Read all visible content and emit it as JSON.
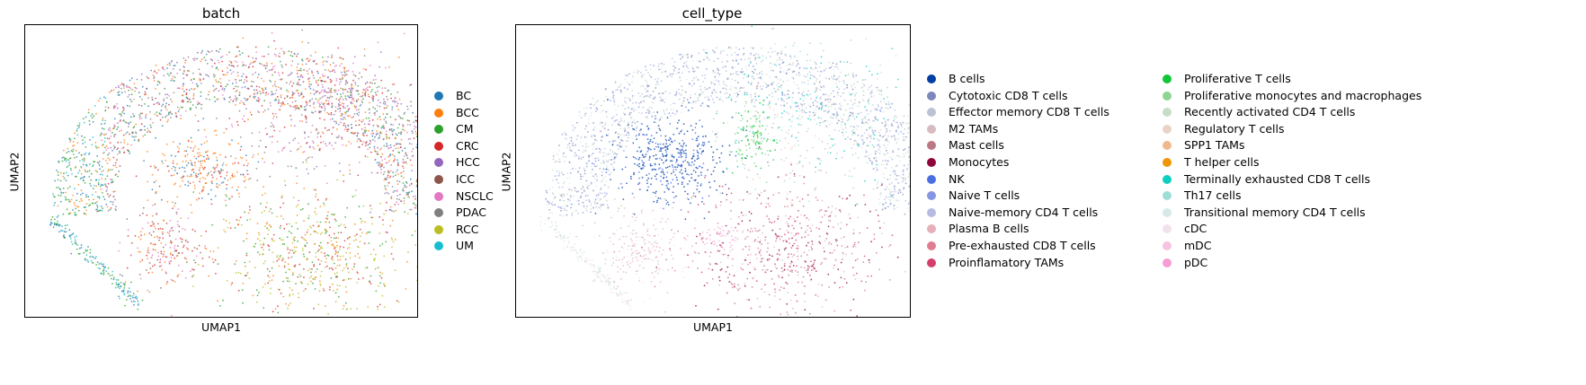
{
  "chart_data": [
    {
      "type": "scatter",
      "title": "batch",
      "xlabel": "UMAP1",
      "ylabel": "UMAP2",
      "grid": false,
      "legend_placement": "right",
      "series": [
        {
          "name": "BC",
          "color": "#1f77b4"
        },
        {
          "name": "BCC",
          "color": "#ff7f0e"
        },
        {
          "name": "CM",
          "color": "#2ca02c"
        },
        {
          "name": "CRC",
          "color": "#d62728"
        },
        {
          "name": "HCC",
          "color": "#9467bd"
        },
        {
          "name": "ICC",
          "color": "#8c564b"
        },
        {
          "name": "NSCLC",
          "color": "#e377c2"
        },
        {
          "name": "PDAC",
          "color": "#7f7f7f"
        },
        {
          "name": "RCC",
          "color": "#bcbd22"
        },
        {
          "name": "UM",
          "color": "#17becf"
        }
      ]
    },
    {
      "type": "scatter",
      "title": "cell_type",
      "xlabel": "UMAP1",
      "ylabel": "UMAP2",
      "grid": false,
      "legend_placement": "right, two columns",
      "series": [
        {
          "name": "B cells",
          "color": "#023fa5"
        },
        {
          "name": "Cytotoxic CD8 T cells",
          "color": "#7d87b9"
        },
        {
          "name": "Effector memory CD8 T cells",
          "color": "#bec1d4"
        },
        {
          "name": "M2 TAMs",
          "color": "#d6bcc0"
        },
        {
          "name": "Mast cells",
          "color": "#bb7784"
        },
        {
          "name": "Monocytes",
          "color": "#8e063b"
        },
        {
          "name": "NK",
          "color": "#4a6fe3"
        },
        {
          "name": "Naive T cells",
          "color": "#8595e1"
        },
        {
          "name": "Naive-memory CD4 T cells",
          "color": "#b5bbe3"
        },
        {
          "name": "Plasma B cells",
          "color": "#e6afb9"
        },
        {
          "name": "Pre-exhausted CD8 T cells",
          "color": "#e07b91"
        },
        {
          "name": "Proinflamatory TAMs",
          "color": "#d33f6a"
        },
        {
          "name": "Proliferative T cells",
          "color": "#11c638"
        },
        {
          "name": "Proliferative monocytes and macrophages",
          "color": "#8dd593"
        },
        {
          "name": "Recently activated CD4 T cells",
          "color": "#c6dec7"
        },
        {
          "name": "Regulatory T cells",
          "color": "#ead3c6"
        },
        {
          "name": "SPP1 TAMs",
          "color": "#f0b98d"
        },
        {
          "name": "T helper cells",
          "color": "#ef9708"
        },
        {
          "name": "Terminally exhausted CD8 T cells",
          "color": "#0fcfc0"
        },
        {
          "name": "Th17 cells",
          "color": "#9cded6"
        },
        {
          "name": "Transitional memory CD4 T cells",
          "color": "#d5eae7"
        },
        {
          "name": "cDC",
          "color": "#f3e1eb"
        },
        {
          "name": "mDC",
          "color": "#f6c4e1"
        },
        {
          "name": "pDC",
          "color": "#f79cd4"
        }
      ]
    }
  ]
}
